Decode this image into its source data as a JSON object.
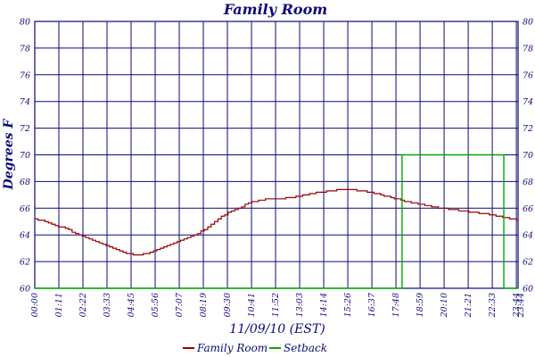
{
  "chart_data": {
    "type": "line",
    "title": "Family Room",
    "xlabel": "11/09/10 (EST)",
    "ylabel": "Degrees F",
    "ylim": [
      60,
      80
    ],
    "y_ticks": [
      "60",
      "62",
      "64",
      "66",
      "68",
      "70",
      "72",
      "74",
      "76",
      "78",
      "80"
    ],
    "x_ticks": [
      "00:00",
      "01:11",
      "02:22",
      "03:33",
      "04:45",
      "05:56",
      "07:07",
      "08:19",
      "09:30",
      "10:41",
      "11:52",
      "13:03",
      "14:14",
      "15:26",
      "16:37",
      "17:48",
      "18:59",
      "20:10",
      "21:21",
      "22:33",
      "23:44",
      "23:44"
    ],
    "x_unit": "hours",
    "xlim": [
      0,
      23.75
    ],
    "grid": true,
    "legend_position": "bottom",
    "series": [
      {
        "name": "Family Room",
        "color": "#990000",
        "points": [
          [
            0.0,
            65.2
          ],
          [
            0.5,
            65.0
          ],
          [
            1.0,
            64.7
          ],
          [
            1.5,
            64.5
          ],
          [
            2.0,
            64.1
          ],
          [
            2.5,
            63.8
          ],
          [
            3.0,
            63.5
          ],
          [
            3.5,
            63.2
          ],
          [
            4.0,
            62.9
          ],
          [
            4.5,
            62.6
          ],
          [
            5.0,
            62.5
          ],
          [
            5.5,
            62.6
          ],
          [
            6.0,
            62.9
          ],
          [
            6.5,
            63.2
          ],
          [
            7.0,
            63.5
          ],
          [
            7.5,
            63.8
          ],
          [
            8.0,
            64.1
          ],
          [
            8.5,
            64.6
          ],
          [
            9.0,
            65.2
          ],
          [
            9.5,
            65.7
          ],
          [
            10.0,
            66.0
          ],
          [
            10.5,
            66.4
          ],
          [
            11.0,
            66.6
          ],
          [
            11.5,
            66.7
          ],
          [
            12.0,
            66.7
          ],
          [
            12.5,
            66.8
          ],
          [
            13.0,
            66.9
          ],
          [
            13.5,
            67.1
          ],
          [
            14.0,
            67.2
          ],
          [
            14.5,
            67.3
          ],
          [
            15.0,
            67.4
          ],
          [
            15.5,
            67.4
          ],
          [
            16.0,
            67.3
          ],
          [
            16.5,
            67.2
          ],
          [
            17.0,
            67.0
          ],
          [
            17.5,
            66.8
          ],
          [
            18.0,
            66.6
          ],
          [
            18.5,
            66.4
          ],
          [
            19.0,
            66.3
          ],
          [
            19.5,
            66.1
          ],
          [
            20.0,
            66.0
          ],
          [
            20.5,
            65.9
          ],
          [
            21.0,
            65.8
          ],
          [
            21.5,
            65.7
          ],
          [
            22.0,
            65.6
          ],
          [
            22.5,
            65.5
          ],
          [
            23.0,
            65.3
          ],
          [
            23.5,
            65.2
          ],
          [
            23.75,
            65.1
          ]
        ]
      },
      {
        "name": "Setback",
        "color": "#00aa00",
        "points": [
          [
            0.0,
            60
          ],
          [
            18.05,
            60
          ],
          [
            18.05,
            70
          ],
          [
            23.05,
            70
          ],
          [
            23.05,
            60
          ],
          [
            23.75,
            60
          ]
        ]
      }
    ]
  }
}
